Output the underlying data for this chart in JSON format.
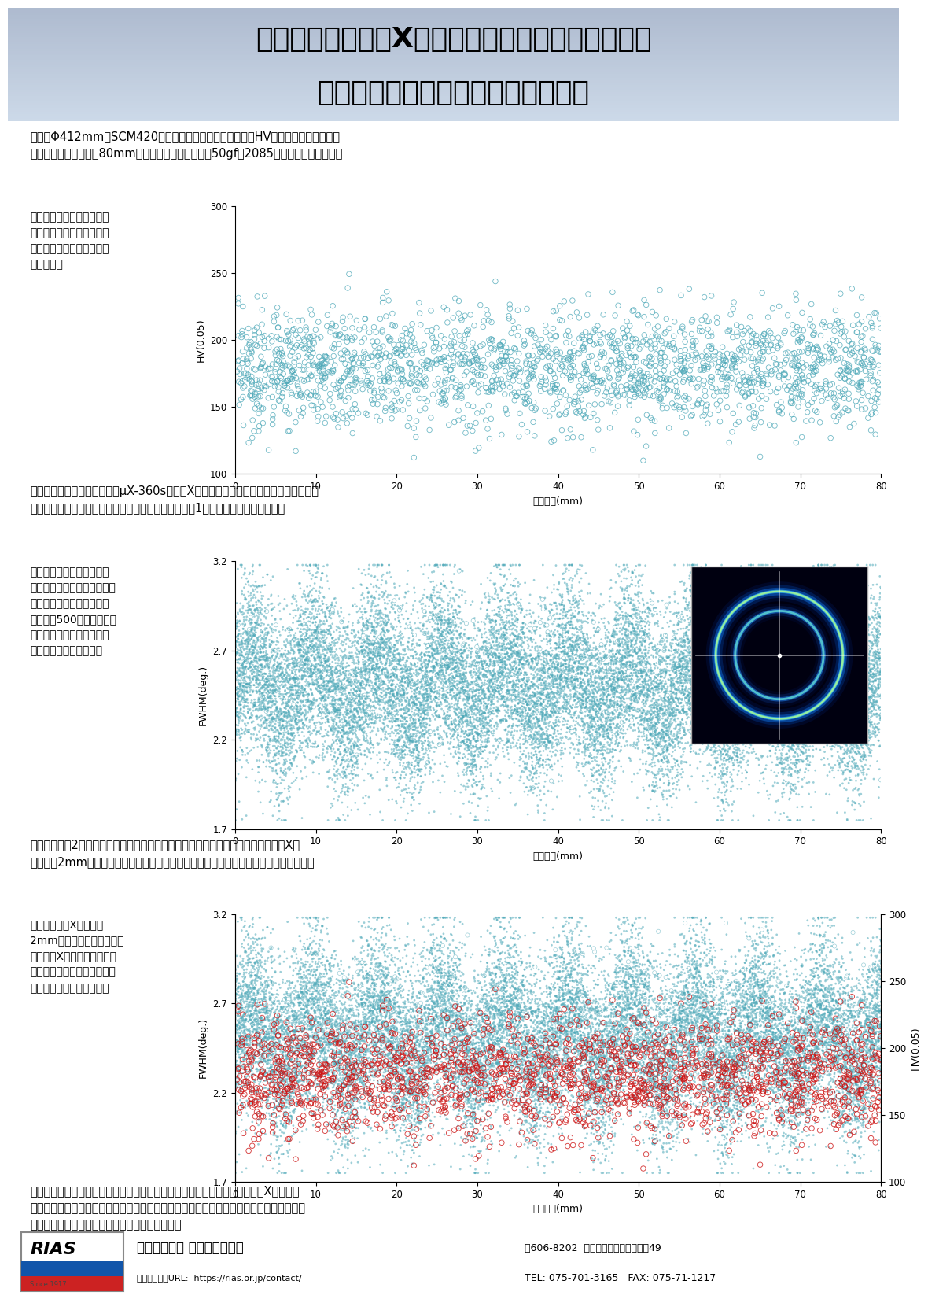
{
  "title_line1": "超多点硬さ測定とX線回折評価技術を組み合わせた",
  "title_line2": "鋼材品質評価法の確立に関する研究",
  "header_bg_top": "#c8d8ea",
  "header_bg_bot": "#a8c0d8",
  "body_bg": "#ffffff",
  "footer_bg": "#c0d0e0",
  "para1": "下図はΦ412mmのSCM420丸棒素材について、超多点自動HV硬さ測定装置を用い、\n軸直角断面の外周から80mm内部までの硬さを、荷重50gfで2085点測定した結果です。",
  "para1_left": "硬さのバラツキは材料内の\n金属学的組織の違いや残留\n応力状態の違い等を反映し\nています。",
  "chart1_xlabel": "測定距離(mm)",
  "chart1_ylabel": "HV(0.05)",
  "chart1_ylim": [
    100,
    300
  ],
  "chart1_yticks": [
    100,
    150,
    200,
    250,
    300
  ],
  "chart1_xlim": [
    0,
    80
  ],
  "chart1_xticks": [
    0,
    10,
    20,
    30,
    40,
    50,
    60,
    70,
    80
  ],
  "para2": "全く同じ測定経路について、μX-360sによるX線回折半価幅の連続自動多点測定結果を\n下図に示します。測定の結果としてられるデバイ環の1例を図中右上に示します。",
  "para2_left": "通常はデバイ環全周分の半\n価幅を平均値として出力しま\nすが、各測定点におけるデ\nバイ環を500分割すると、\n半価幅はかなりバラついて\nいることが分かります。",
  "chart2_xlabel": "測定距離(mm)",
  "chart2_ylabel": "FWHM(deg.)",
  "chart2_ylim": [
    1.7,
    3.2
  ],
  "chart2_yticks": [
    1.7,
    2.2,
    2.7,
    3.2
  ],
  "chart2_xlim": [
    0,
    80
  ],
  "chart2_xticks": [
    0,
    10,
    20,
    30,
    40,
    50,
    60,
    70,
    80
  ],
  "para3": "最下段は上記2つの測定結果を重ね合わせた結果です。赤丸が硬さ測定結果です。X線\n照射径は2mmですが、硬さのバラツキと半価幅のバラツキには相関性が認められます。",
  "para3_left": "この結果は、X線照射径\n2mmの範囲内の硬さのバラ\nツキを、X線半価幅の測定に\nよって捉えることが出来てい\nることを示唆しています。",
  "chart3_xlabel": "測定距離(mm)",
  "chart3_ylabel_left": "FWHM(deg.)",
  "chart3_ylabel_right": "HV(0.05)",
  "chart3_ylim_fwhm": [
    1.7,
    3.2
  ],
  "chart3_ylim_hv": [
    100,
    300
  ],
  "chart3_yticks_fwhm": [
    1.7,
    2.2,
    2.7,
    3.2
  ],
  "chart3_yticks_hv": [
    100,
    150,
    200,
    250,
    300
  ],
  "chart3_xlim": [
    0,
    80
  ],
  "chart3_xticks": [
    0,
    10,
    20,
    30,
    40,
    50,
    60,
    70,
    80
  ],
  "para4": "本研究所では、超多点の硬さ測定によって得られる硬さ分布状態の解析と、X線回折に\nよって得られるデバイ環形状の解析結果を組み合わせることで、世界に類を見ない独自の\n鋼材品質評価法を確立すべく取り組んでいます。",
  "footer_org": "公益財団法人 応用科学研究所",
  "footer_url": "お問い合わせURL:  https://rias.or.jp/contact/",
  "footer_addr": "〒606-8202  京都市左京区田中大堰町49",
  "footer_tel": "TEL: 075-701-3165   FAX: 075-71-1217",
  "dot_color_hv": "#4da8b8",
  "dot_color_fwhm": "#4da8b8",
  "dot_color_red": "#cc1111",
  "n_points_hv": 2085,
  "n_points_fwhm": 20000,
  "seed_hv": 42,
  "seed_fwhm": 77
}
